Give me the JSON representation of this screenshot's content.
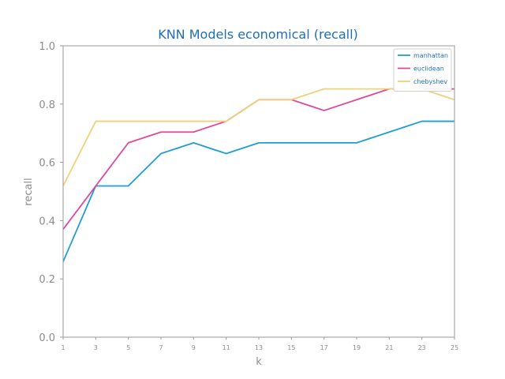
{
  "chart_data": {
    "type": "line",
    "title": "KNN Models economical (recall)",
    "xlabel": "k",
    "ylabel": "recall",
    "x": [
      1,
      3,
      5,
      7,
      9,
      11,
      13,
      15,
      17,
      19,
      21,
      23,
      25
    ],
    "xlim": [
      1,
      25
    ],
    "ylim": [
      0.0,
      1.0
    ],
    "yticks": [
      "0.0",
      "0.2",
      "0.4",
      "0.6",
      "0.8",
      "1.0"
    ],
    "xticks": [
      "1",
      "3",
      "5",
      "7",
      "9",
      "11",
      "13",
      "15",
      "17",
      "19",
      "21",
      "23",
      "25"
    ],
    "grid": false,
    "legend_position": "top-right",
    "series": [
      {
        "name": "manhattan",
        "color": "#1f9ed4",
        "values": [
          0.259,
          0.519,
          0.519,
          0.63,
          0.667,
          0.63,
          0.667,
          0.667,
          0.667,
          0.667,
          0.704,
          0.741,
          0.741
        ]
      },
      {
        "name": "euclidean",
        "color": "#e0489a",
        "values": [
          0.37,
          0.519,
          0.667,
          0.704,
          0.704,
          0.741,
          0.815,
          0.815,
          0.778,
          0.815,
          0.852,
          0.852,
          0.852
        ]
      },
      {
        "name": "chebyshev",
        "color": "#f0d078",
        "values": [
          0.519,
          0.741,
          0.741,
          0.741,
          0.741,
          0.741,
          0.815,
          0.815,
          0.852,
          0.852,
          0.852,
          0.852,
          0.815
        ]
      }
    ]
  }
}
